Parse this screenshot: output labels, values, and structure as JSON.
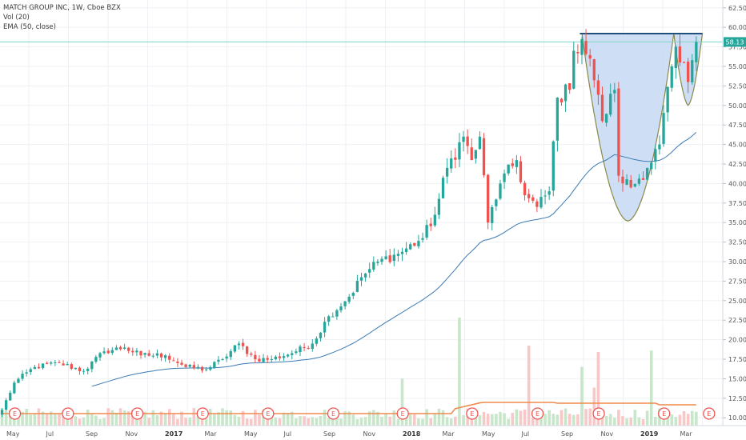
{
  "legend": {
    "title": "MATCH GROUP INC, 1W, Cboe BZX",
    "vol": "Vol (20)",
    "ema": "EMA (50, close)"
  },
  "last_price_label": "58.13",
  "earnings_marker": "E",
  "colors": {
    "up": "#26a69a",
    "down": "#ef5350",
    "up_vol": "#c8e6c9",
    "down_vol": "#f8c8c8",
    "ema": "#3c7ab4",
    "vol_ma": "#f08a4b",
    "fill": "#c5d8f3",
    "cup_line": "#8a8a4a",
    "rim": "#1f4f7a",
    "price_line": "#7dd6c9",
    "last_label_bg": "#26a69a"
  },
  "chart_data": {
    "type": "candlestick",
    "title": "MATCH GROUP INC, 1W, Cboe BZX",
    "y_ticks": [
      "62.50",
      "60.00",
      "57.50",
      "55.00",
      "52.50",
      "50.00",
      "47.50",
      "45.00",
      "42.50",
      "40.00",
      "37.50",
      "35.00",
      "32.50",
      "30.00",
      "27.50",
      "25.00",
      "22.50",
      "20.00",
      "17.50",
      "15.00",
      "12.50",
      "10.00"
    ],
    "x_ticks": [
      {
        "label": "May",
        "bold": false
      },
      {
        "label": "Jul",
        "bold": false
      },
      {
        "label": "Sep",
        "bold": false
      },
      {
        "label": "Nov",
        "bold": false
      },
      {
        "label": "2017",
        "bold": true
      },
      {
        "label": "Mar",
        "bold": false
      },
      {
        "label": "May",
        "bold": false
      },
      {
        "label": "Jul",
        "bold": false
      },
      {
        "label": "Sep",
        "bold": false
      },
      {
        "label": "Nov",
        "bold": false
      },
      {
        "label": "2018",
        "bold": true
      },
      {
        "label": "Mar",
        "bold": false
      },
      {
        "label": "May",
        "bold": false
      },
      {
        "label": "Jul",
        "bold": false
      },
      {
        "label": "Sep",
        "bold": false
      },
      {
        "label": "Nov",
        "bold": false
      },
      {
        "label": "2019",
        "bold": true
      },
      {
        "label": "Mar",
        "bold": false
      }
    ],
    "y_range": [
      9.0,
      63.5
    ],
    "last_price": 58.13,
    "resistance": 59.2,
    "cup_bottom": 35.2,
    "handle_bottom": 50.0,
    "anchors": [
      [
        0,
        11.0
      ],
      [
        3,
        14.5
      ],
      [
        8,
        16.5
      ],
      [
        14,
        17.0
      ],
      [
        20,
        16.0
      ],
      [
        25,
        18.5
      ],
      [
        30,
        19.0
      ],
      [
        34,
        18.0
      ],
      [
        40,
        18.0
      ],
      [
        45,
        16.5
      ],
      [
        50,
        16.2
      ],
      [
        54,
        17.5
      ],
      [
        58,
        19.5
      ],
      [
        62,
        17.5
      ],
      [
        66,
        17.5
      ],
      [
        72,
        18.5
      ],
      [
        76,
        19.5
      ],
      [
        80,
        23.0
      ],
      [
        85,
        25.5
      ],
      [
        88,
        28.0
      ],
      [
        92,
        30.0
      ],
      [
        97,
        31.0
      ],
      [
        103,
        33.0
      ],
      [
        106,
        36.0
      ],
      [
        109,
        42.0
      ],
      [
        113,
        46.0
      ],
      [
        115,
        43.0
      ],
      [
        117,
        46.0
      ],
      [
        119,
        35.0
      ],
      [
        122,
        40.0
      ],
      [
        126,
        43.0
      ],
      [
        128,
        38.5
      ],
      [
        131,
        37.0
      ],
      [
        134,
        39.0
      ],
      [
        136,
        51.0
      ],
      [
        139,
        52.0
      ],
      [
        140,
        57.0
      ],
      [
        142,
        58.5
      ],
      [
        144,
        56.0
      ],
      [
        147,
        48.0
      ],
      [
        150,
        52.0
      ],
      [
        151,
        41.0
      ],
      [
        154,
        39.5
      ],
      [
        158,
        42.0
      ],
      [
        161,
        45.0
      ],
      [
        164,
        55.0
      ],
      [
        165,
        57.5
      ],
      [
        166,
        55.5
      ],
      [
        168,
        53.0
      ],
      [
        170,
        58.13
      ]
    ],
    "earnings_weeks": [
      0,
      13,
      30,
      46,
      62,
      78,
      95,
      112,
      128,
      143,
      159,
      170
    ]
  }
}
